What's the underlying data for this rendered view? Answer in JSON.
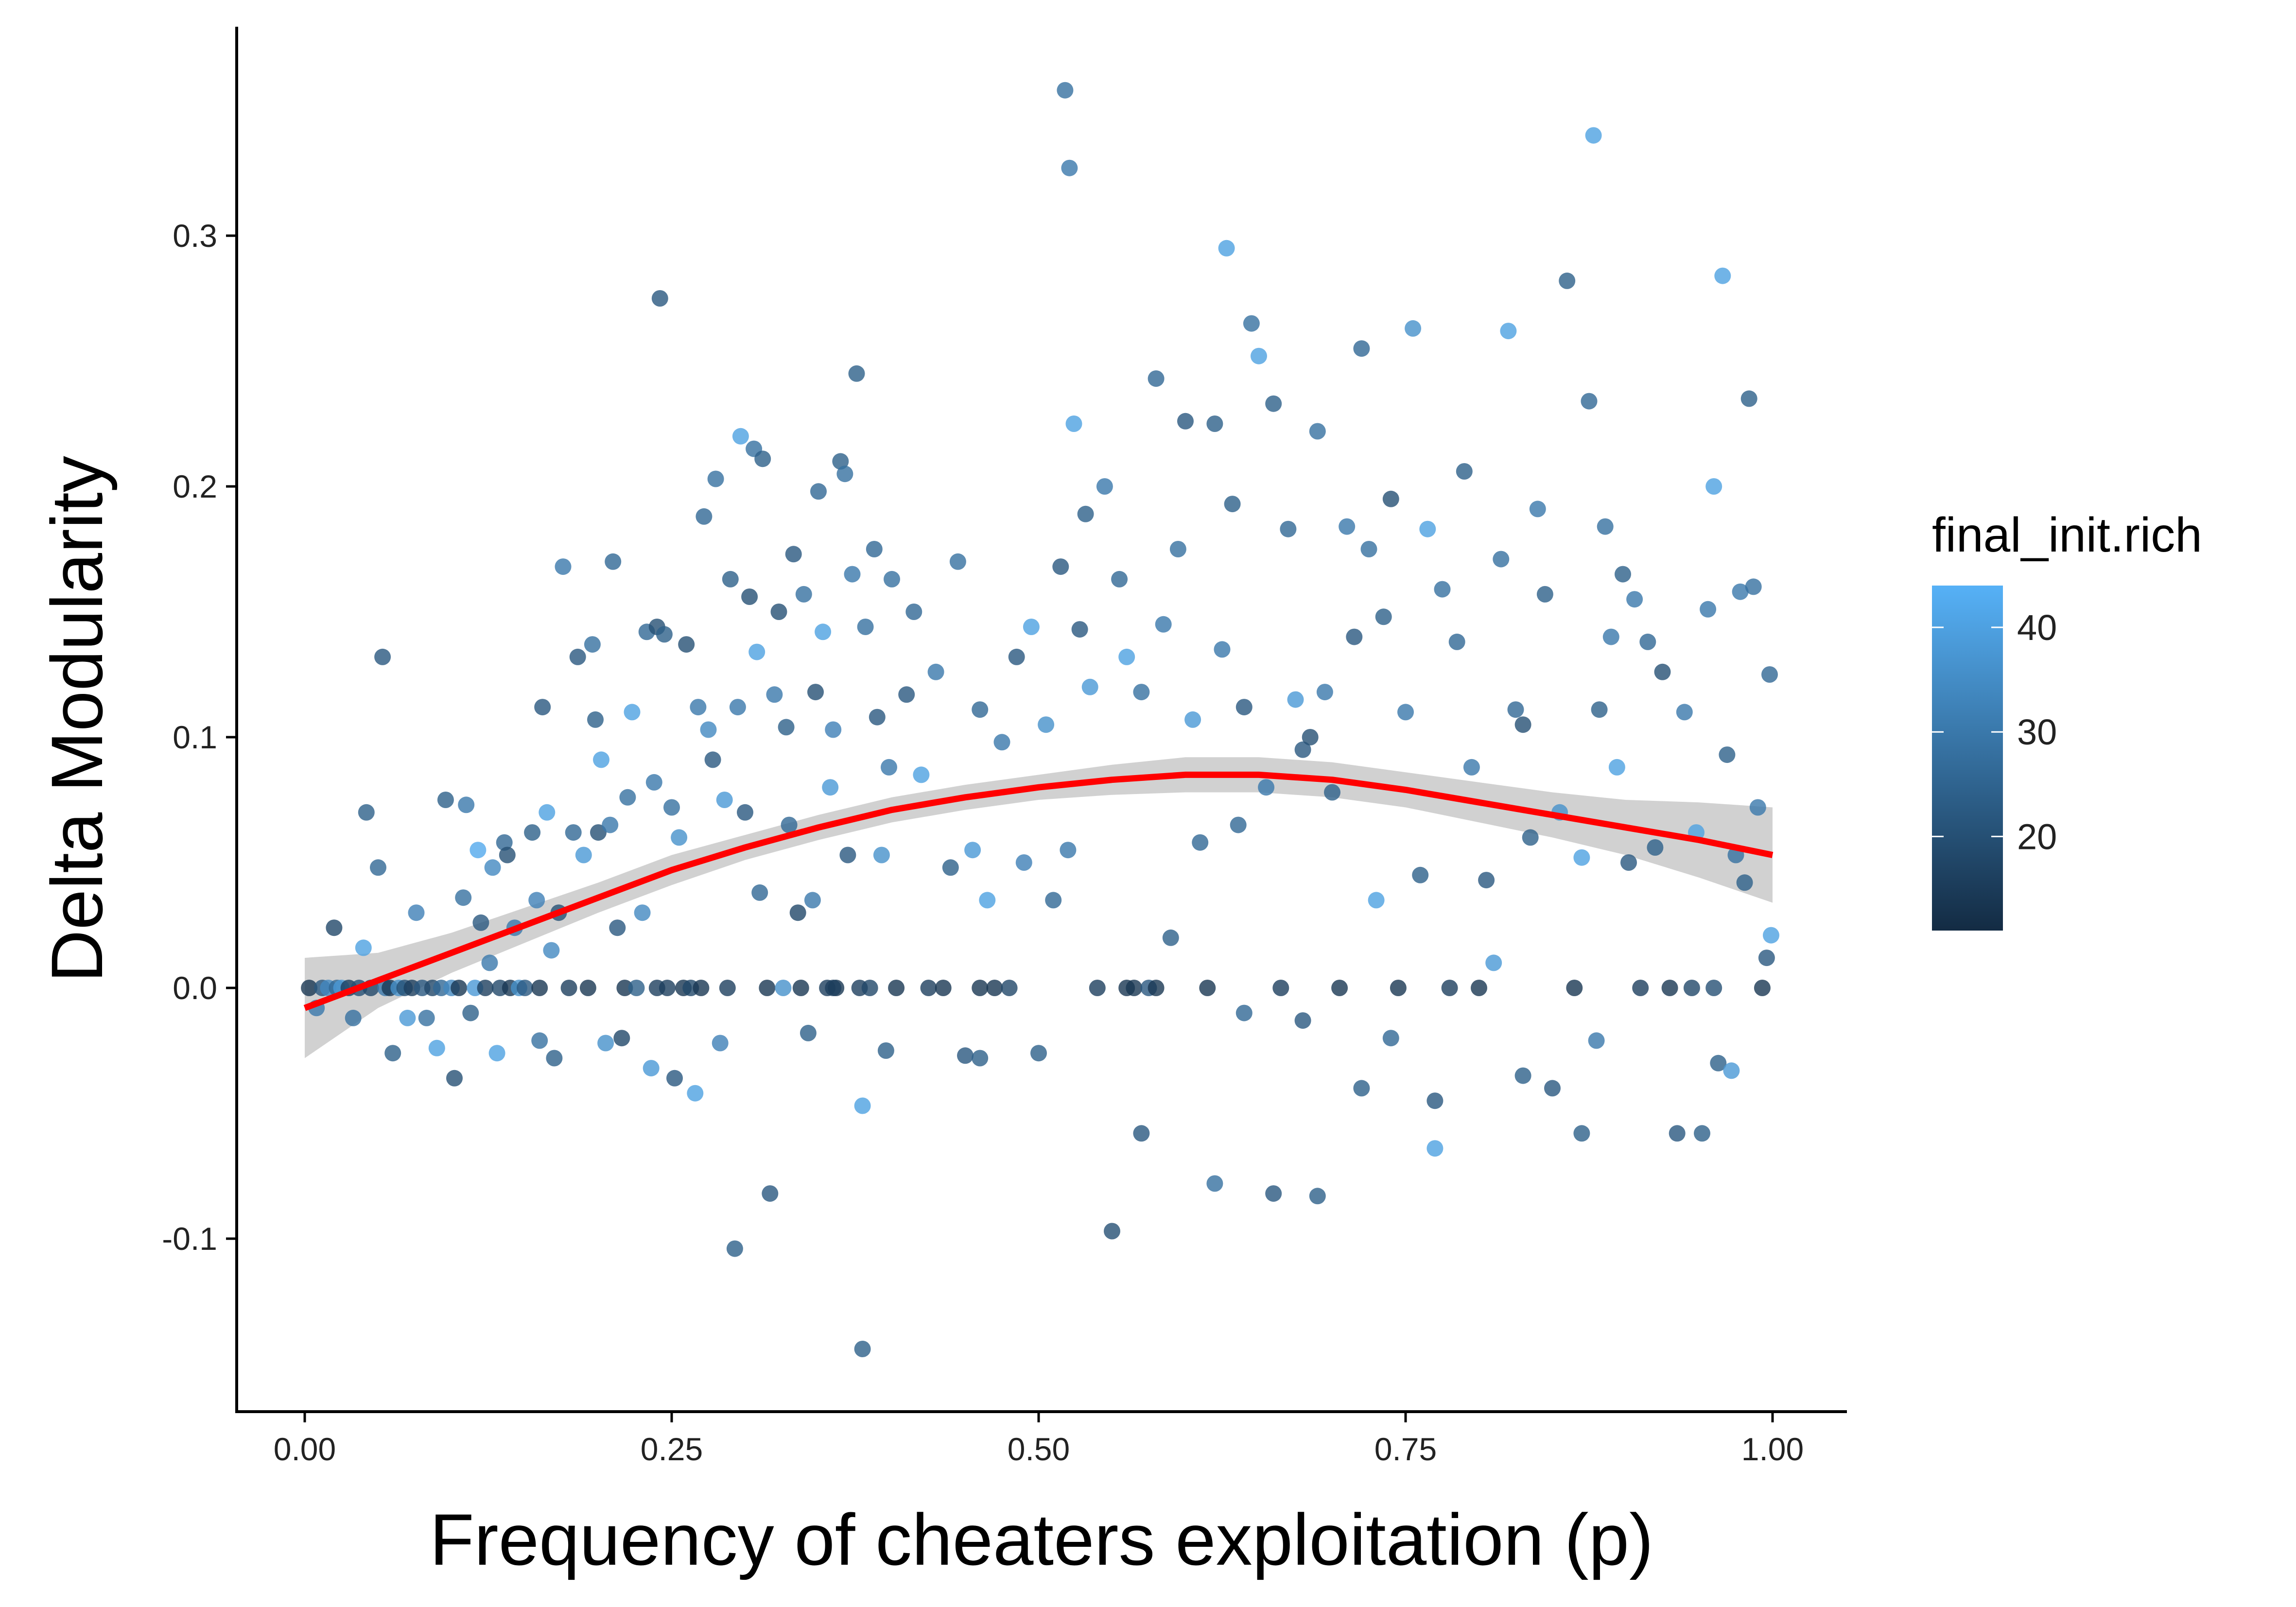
{
  "chart_data": {
    "type": "scatter",
    "title": "",
    "xlabel": "Frequency of cheaters exploitation (p)",
    "ylabel": "Delta Modularity",
    "xlim": [
      -0.09,
      2.1
    ],
    "ylim": [
      -0.168,
      0.383
    ],
    "x_ticks": [
      0.0,
      0.25,
      0.5,
      0.75,
      1.0
    ],
    "x_tick_labels": [
      "0.00",
      "0.25",
      "0.50",
      "0.75",
      "1.00"
    ],
    "y_ticks": [
      -0.1,
      0.0,
      0.1,
      0.2,
      0.3
    ],
    "y_tick_labels": [
      "-0.1",
      "0.0",
      "0.1",
      "0.2",
      "0.3"
    ],
    "grid": false,
    "legend": {
      "title": "final_init.rich",
      "position": "right",
      "color_range": [
        11,
        44
      ],
      "low_color": "#132b43",
      "high_color": "#56b1f7",
      "ticks": [
        20,
        30,
        40
      ],
      "tick_labels": [
        "20",
        "30",
        "40"
      ]
    },
    "point_opacity": 0.8,
    "smooth": {
      "name": "loess fit",
      "color": "#ff0000",
      "band_color": "#bdbdbd",
      "x": [
        0.0,
        0.05,
        0.1,
        0.15,
        0.2,
        0.25,
        0.3,
        0.35,
        0.4,
        0.45,
        0.5,
        0.55,
        0.6,
        0.63,
        0.65,
        0.7,
        0.75,
        0.8,
        0.85,
        0.9,
        0.95,
        1.0
      ],
      "y": [
        -0.008,
        0.003,
        0.014,
        0.025,
        0.036,
        0.047,
        0.056,
        0.064,
        0.071,
        0.076,
        0.08,
        0.083,
        0.085,
        0.085,
        0.085,
        0.083,
        0.079,
        0.074,
        0.069,
        0.064,
        0.059,
        0.053
      ],
      "lower": [
        -0.028,
        -0.008,
        0.006,
        0.018,
        0.03,
        0.041,
        0.051,
        0.059,
        0.066,
        0.071,
        0.075,
        0.077,
        0.078,
        0.078,
        0.078,
        0.076,
        0.072,
        0.066,
        0.06,
        0.053,
        0.044,
        0.034
      ],
      "upper": [
        0.012,
        0.014,
        0.022,
        0.032,
        0.042,
        0.053,
        0.061,
        0.069,
        0.076,
        0.081,
        0.085,
        0.089,
        0.092,
        0.092,
        0.092,
        0.09,
        0.086,
        0.082,
        0.078,
        0.075,
        0.074,
        0.072
      ]
    },
    "points": [
      [
        0.003,
        0.0,
        14
      ],
      [
        0.008,
        -0.008,
        30
      ],
      [
        0.012,
        0.0,
        22
      ],
      [
        0.016,
        0.0,
        34
      ],
      [
        0.02,
        0.024,
        18
      ],
      [
        0.022,
        0.0,
        26
      ],
      [
        0.025,
        0.0,
        38
      ],
      [
        0.03,
        0.0,
        16
      ],
      [
        0.033,
        -0.012,
        28
      ],
      [
        0.037,
        0.0,
        20
      ],
      [
        0.04,
        0.016,
        40
      ],
      [
        0.042,
        0.07,
        24
      ],
      [
        0.045,
        0.0,
        18
      ],
      [
        0.05,
        0.048,
        26
      ],
      [
        0.053,
        0.132,
        22
      ],
      [
        0.055,
        0.0,
        30
      ],
      [
        0.058,
        0.0,
        14
      ],
      [
        0.06,
        -0.026,
        24
      ],
      [
        0.064,
        0.0,
        36
      ],
      [
        0.068,
        0.0,
        20
      ],
      [
        0.07,
        -0.012,
        38
      ],
      [
        0.073,
        0.0,
        16
      ],
      [
        0.076,
        0.03,
        32
      ],
      [
        0.08,
        0.0,
        22
      ],
      [
        0.083,
        -0.012,
        28
      ],
      [
        0.087,
        0.0,
        18
      ],
      [
        0.09,
        -0.024,
        40
      ],
      [
        0.093,
        0.0,
        26
      ],
      [
        0.096,
        0.075,
        24
      ],
      [
        0.1,
        0.0,
        34
      ],
      [
        0.102,
        -0.036,
        20
      ],
      [
        0.105,
        0.0,
        14
      ],
      [
        0.108,
        0.036,
        28
      ],
      [
        0.11,
        0.073,
        30
      ],
      [
        0.113,
        -0.01,
        24
      ],
      [
        0.116,
        0.0,
        38
      ],
      [
        0.118,
        0.055,
        42
      ],
      [
        0.12,
        0.026,
        22
      ],
      [
        0.123,
        0.0,
        16
      ],
      [
        0.126,
        0.01,
        30
      ],
      [
        0.128,
        0.048,
        34
      ],
      [
        0.131,
        -0.026,
        40
      ],
      [
        0.133,
        0.0,
        18
      ],
      [
        0.136,
        0.058,
        26
      ],
      [
        0.138,
        0.053,
        20
      ],
      [
        0.14,
        0.0,
        14
      ],
      [
        0.143,
        0.024,
        30
      ],
      [
        0.146,
        0.0,
        36
      ],
      [
        0.15,
        0.0,
        22
      ],
      [
        0.155,
        0.062,
        24
      ],
      [
        0.158,
        0.035,
        32
      ],
      [
        0.16,
        -0.021,
        28
      ],
      [
        0.162,
        0.112,
        22
      ],
      [
        0.165,
        0.07,
        40
      ],
      [
        0.168,
        0.015,
        34
      ],
      [
        0.17,
        -0.028,
        24
      ],
      [
        0.173,
        0.03,
        20
      ],
      [
        0.176,
        0.168,
        30
      ],
      [
        0.18,
        0.0,
        16
      ],
      [
        0.183,
        0.062,
        26
      ],
      [
        0.186,
        0.132,
        22
      ],
      [
        0.19,
        0.053,
        38
      ],
      [
        0.193,
        0.0,
        14
      ],
      [
        0.196,
        0.137,
        28
      ],
      [
        0.198,
        0.107,
        24
      ],
      [
        0.2,
        0.062,
        20
      ],
      [
        0.202,
        0.091,
        40
      ],
      [
        0.205,
        -0.022,
        36
      ],
      [
        0.208,
        0.065,
        30
      ],
      [
        0.21,
        0.17,
        26
      ],
      [
        0.213,
        0.024,
        22
      ],
      [
        0.216,
        -0.02,
        18
      ],
      [
        0.218,
        0.0,
        14
      ],
      [
        0.22,
        0.076,
        28
      ],
      [
        0.223,
        0.11,
        40
      ],
      [
        0.226,
        0.0,
        24
      ],
      [
        0.23,
        0.03,
        34
      ],
      [
        0.233,
        0.142,
        26
      ],
      [
        0.236,
        -0.032,
        38
      ],
      [
        0.238,
        0.082,
        30
      ],
      [
        0.24,
        0.144,
        20
      ],
      [
        0.242,
        0.275,
        22
      ],
      [
        0.245,
        0.141,
        24
      ],
      [
        0.247,
        0.0,
        16
      ],
      [
        0.25,
        0.072,
        28
      ],
      [
        0.252,
        -0.036,
        22
      ],
      [
        0.255,
        0.06,
        36
      ],
      [
        0.258,
        0.0,
        14
      ],
      [
        0.26,
        0.137,
        20
      ],
      [
        0.263,
        0.0,
        18
      ],
      [
        0.266,
        -0.042,
        40
      ],
      [
        0.268,
        0.112,
        30
      ],
      [
        0.27,
        0.0,
        14
      ],
      [
        0.272,
        0.188,
        26
      ],
      [
        0.275,
        0.103,
        34
      ],
      [
        0.278,
        0.091,
        22
      ],
      [
        0.28,
        0.203,
        28
      ],
      [
        0.283,
        -0.022,
        32
      ],
      [
        0.286,
        0.075,
        38
      ],
      [
        0.288,
        0.0,
        16
      ],
      [
        0.29,
        0.163,
        24
      ],
      [
        0.293,
        -0.104,
        24
      ],
      [
        0.295,
        0.112,
        30
      ],
      [
        0.297,
        0.22,
        40
      ],
      [
        0.3,
        0.07,
        22
      ],
      [
        0.303,
        0.156,
        20
      ],
      [
        0.306,
        0.215,
        28
      ],
      [
        0.308,
        0.134,
        40
      ],
      [
        0.31,
        0.038,
        26
      ],
      [
        0.312,
        0.211,
        24
      ],
      [
        0.315,
        0.0,
        14
      ],
      [
        0.317,
        -0.082,
        22
      ],
      [
        0.32,
        0.117,
        30
      ],
      [
        0.323,
        0.15,
        20
      ],
      [
        0.326,
        0.0,
        36
      ],
      [
        0.328,
        0.104,
        24
      ],
      [
        0.33,
        0.065,
        26
      ],
      [
        0.333,
        0.173,
        22
      ],
      [
        0.336,
        0.03,
        18
      ],
      [
        0.338,
        0.0,
        14
      ],
      [
        0.34,
        0.157,
        28
      ],
      [
        0.343,
        -0.018,
        24
      ],
      [
        0.346,
        0.035,
        30
      ],
      [
        0.348,
        0.118,
        20
      ],
      [
        0.35,
        0.198,
        26
      ],
      [
        0.353,
        0.142,
        40
      ],
      [
        0.356,
        0.0,
        16
      ],
      [
        0.358,
        0.08,
        38
      ],
      [
        0.36,
        0.103,
        32
      ],
      [
        0.362,
        0.0,
        14
      ],
      [
        0.365,
        0.21,
        24
      ],
      [
        0.368,
        0.205,
        28
      ],
      [
        0.37,
        0.053,
        22
      ],
      [
        0.373,
        0.165,
        30
      ],
      [
        0.376,
        0.245,
        24
      ],
      [
        0.378,
        0.0,
        16
      ],
      [
        0.38,
        -0.047,
        40
      ],
      [
        0.382,
        0.144,
        28
      ],
      [
        0.385,
        0.0,
        18
      ],
      [
        0.388,
        0.175,
        26
      ],
      [
        0.39,
        0.108,
        22
      ],
      [
        0.393,
        0.053,
        36
      ],
      [
        0.396,
        -0.025,
        24
      ],
      [
        0.398,
        0.088,
        30
      ],
      [
        0.4,
        0.163,
        28
      ],
      [
        0.403,
        0.0,
        14
      ],
      [
        0.41,
        0.117,
        22
      ],
      [
        0.415,
        0.15,
        26
      ],
      [
        0.42,
        0.085,
        40
      ],
      [
        0.425,
        0.0,
        16
      ],
      [
        0.43,
        0.126,
        30
      ],
      [
        0.435,
        0.0,
        14
      ],
      [
        0.44,
        0.048,
        24
      ],
      [
        0.445,
        0.17,
        28
      ],
      [
        0.45,
        -0.027,
        22
      ],
      [
        0.455,
        0.055,
        38
      ],
      [
        0.46,
        0.111,
        26
      ],
      [
        0.465,
        0.035,
        40
      ],
      [
        0.47,
        0.0,
        14
      ],
      [
        0.475,
        0.098,
        30
      ],
      [
        0.48,
        0.0,
        18
      ],
      [
        0.485,
        0.132,
        22
      ],
      [
        0.49,
        0.05,
        32
      ],
      [
        0.495,
        0.144,
        40
      ],
      [
        0.5,
        -0.026,
        24
      ],
      [
        0.505,
        0.105,
        36
      ],
      [
        0.51,
        0.035,
        26
      ],
      [
        0.515,
        0.168,
        22
      ],
      [
        0.518,
        0.358,
        28
      ],
      [
        0.521,
        0.327,
        30
      ],
      [
        0.524,
        0.225,
        40
      ],
      [
        0.528,
        0.143,
        22
      ],
      [
        0.532,
        0.189,
        24
      ],
      [
        0.535,
        0.12,
        38
      ],
      [
        0.54,
        0.0,
        16
      ],
      [
        0.545,
        0.2,
        30
      ],
      [
        0.55,
        -0.097,
        20
      ],
      [
        0.555,
        0.163,
        26
      ],
      [
        0.56,
        0.132,
        40
      ],
      [
        0.565,
        0.0,
        14
      ],
      [
        0.57,
        0.118,
        28
      ],
      [
        0.575,
        0.0,
        22
      ],
      [
        0.58,
        0.243,
        26
      ],
      [
        0.585,
        0.145,
        30
      ],
      [
        0.59,
        0.02,
        24
      ],
      [
        0.595,
        0.175,
        28
      ],
      [
        0.6,
        0.226,
        22
      ],
      [
        0.605,
        0.107,
        38
      ],
      [
        0.61,
        0.058,
        26
      ],
      [
        0.615,
        0.0,
        14
      ],
      [
        0.62,
        0.225,
        24
      ],
      [
        0.625,
        0.135,
        30
      ],
      [
        0.628,
        0.295,
        40
      ],
      [
        0.632,
        0.193,
        24
      ],
      [
        0.636,
        0.065,
        26
      ],
      [
        0.64,
        0.112,
        22
      ],
      [
        0.645,
        0.265,
        28
      ],
      [
        0.65,
        0.252,
        40
      ],
      [
        0.655,
        0.08,
        30
      ],
      [
        0.66,
        0.233,
        24
      ],
      [
        0.665,
        0.0,
        16
      ],
      [
        0.67,
        0.183,
        26
      ],
      [
        0.675,
        0.115,
        38
      ],
      [
        0.68,
        0.095,
        22
      ],
      [
        0.685,
        0.1,
        20
      ],
      [
        0.69,
        0.222,
        28
      ],
      [
        0.695,
        0.118,
        30
      ],
      [
        0.7,
        0.078,
        24
      ],
      [
        0.705,
        0.0,
        14
      ],
      [
        0.71,
        0.184,
        30
      ],
      [
        0.715,
        0.14,
        22
      ],
      [
        0.72,
        0.255,
        26
      ],
      [
        0.725,
        0.175,
        28
      ],
      [
        0.73,
        0.035,
        40
      ],
      [
        0.735,
        0.148,
        24
      ],
      [
        0.74,
        0.195,
        20
      ],
      [
        0.745,
        0.0,
        14
      ],
      [
        0.75,
        0.11,
        30
      ],
      [
        0.755,
        0.263,
        36
      ],
      [
        0.76,
        0.045,
        24
      ],
      [
        0.765,
        0.183,
        40
      ],
      [
        0.77,
        -0.045,
        22
      ],
      [
        0.775,
        0.159,
        28
      ],
      [
        0.78,
        0.0,
        16
      ],
      [
        0.785,
        0.138,
        26
      ],
      [
        0.79,
        0.206,
        24
      ],
      [
        0.795,
        0.088,
        30
      ],
      [
        0.8,
        0.0,
        14
      ],
      [
        0.805,
        0.043,
        22
      ],
      [
        0.81,
        0.01,
        38
      ],
      [
        0.815,
        0.171,
        28
      ],
      [
        0.82,
        0.262,
        40
      ],
      [
        0.825,
        0.111,
        26
      ],
      [
        0.83,
        0.105,
        20
      ],
      [
        0.835,
        0.06,
        24
      ],
      [
        0.84,
        0.191,
        30
      ],
      [
        0.845,
        0.157,
        24
      ],
      [
        0.85,
        -0.04,
        22
      ],
      [
        0.855,
        0.07,
        36
      ],
      [
        0.86,
        0.282,
        24
      ],
      [
        0.865,
        0.0,
        14
      ],
      [
        0.87,
        0.052,
        40
      ],
      [
        0.875,
        0.234,
        26
      ],
      [
        0.878,
        0.34,
        40
      ],
      [
        0.882,
        0.111,
        24
      ],
      [
        0.886,
        0.184,
        28
      ],
      [
        0.89,
        0.14,
        30
      ],
      [
        0.894,
        0.088,
        40
      ],
      [
        0.898,
        0.165,
        24
      ],
      [
        0.902,
        0.05,
        22
      ],
      [
        0.906,
        0.155,
        30
      ],
      [
        0.91,
        0.0,
        16
      ],
      [
        0.915,
        0.138,
        26
      ],
      [
        0.92,
        0.056,
        24
      ],
      [
        0.925,
        0.126,
        20
      ],
      [
        0.93,
        0.0,
        14
      ],
      [
        0.935,
        -0.058,
        22
      ],
      [
        0.94,
        0.11,
        30
      ],
      [
        0.945,
        0.0,
        18
      ],
      [
        0.948,
        0.062,
        40
      ],
      [
        0.952,
        -0.058,
        24
      ],
      [
        0.956,
        0.151,
        30
      ],
      [
        0.96,
        0.2,
        40
      ],
      [
        0.963,
        -0.03,
        24
      ],
      [
        0.966,
        0.284,
        40
      ],
      [
        0.969,
        0.093,
        24
      ],
      [
        0.972,
        -0.033,
        38
      ],
      [
        0.975,
        0.053,
        28
      ],
      [
        0.978,
        0.158,
        30
      ],
      [
        0.981,
        0.042,
        24
      ],
      [
        0.984,
        0.235,
        24
      ],
      [
        0.987,
        0.16,
        28
      ],
      [
        0.99,
        0.072,
        30
      ],
      [
        0.993,
        0.0,
        14
      ],
      [
        0.996,
        0.012,
        22
      ],
      [
        0.998,
        0.125,
        26
      ],
      [
        0.999,
        0.021,
        40
      ],
      [
        0.38,
        -0.144,
        24
      ],
      [
        0.46,
        0.0,
        14
      ],
      [
        0.52,
        0.055,
        30
      ],
      [
        0.66,
        -0.082,
        22
      ],
      [
        0.69,
        -0.083,
        24
      ],
      [
        0.62,
        -0.078,
        28
      ],
      [
        0.77,
        -0.064,
        40
      ],
      [
        0.87,
        -0.058,
        24
      ],
      [
        0.57,
        -0.058,
        22
      ],
      [
        0.46,
        -0.028,
        24
      ],
      [
        0.64,
        -0.01,
        26
      ],
      [
        0.88,
        -0.021,
        30
      ],
      [
        0.72,
        -0.04,
        24
      ],
      [
        0.56,
        0.0,
        14
      ],
      [
        0.74,
        -0.02,
        26
      ],
      [
        0.16,
        0.0,
        14
      ],
      [
        0.24,
        0.0,
        16
      ],
      [
        0.36,
        0.0,
        16
      ],
      [
        0.58,
        0.0,
        14
      ],
      [
        0.68,
        -0.013,
        22
      ],
      [
        0.83,
        -0.035,
        24
      ],
      [
        0.96,
        0.0,
        20
      ]
    ]
  }
}
